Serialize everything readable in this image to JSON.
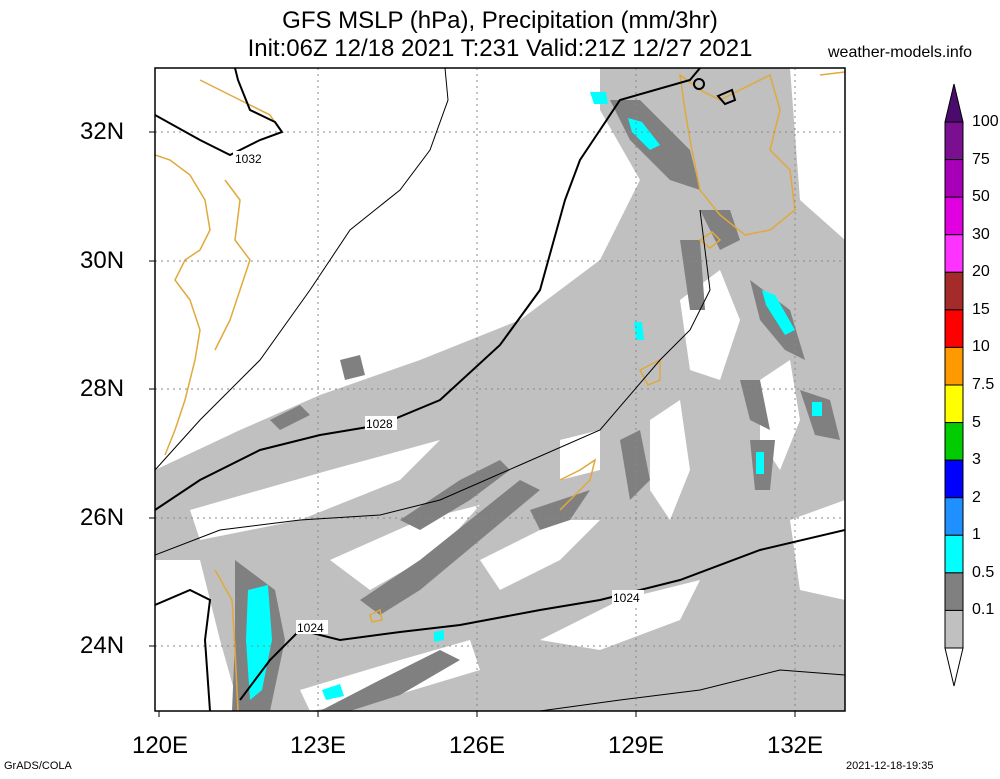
{
  "header": {
    "title_line1": "GFS MSLP (hPa), Precipitation (mm/3hr)",
    "title_line2": "Init:06Z 12/18 2021 T:231 Valid:21Z 12/27 2021",
    "site": "weather-models.info"
  },
  "map": {
    "lon_range": [
      120,
      133
    ],
    "lat_range": [
      23,
      33
    ],
    "lon_labels": [
      "120E",
      "123E",
      "126E",
      "129E",
      "132E"
    ],
    "lat_labels": [
      "32N",
      "30N",
      "28N",
      "26N",
      "24N"
    ],
    "isobar_labels": [
      "1032",
      "1028",
      "1024",
      "1024"
    ]
  },
  "colorbar": {
    "labels": [
      "100",
      "75",
      "50",
      "30",
      "20",
      "15",
      "10",
      "7.5",
      "5",
      "3",
      "2",
      "1",
      "0.5",
      "0.1"
    ],
    "colors": [
      "#7a0f8f",
      "#a800b8",
      "#e000e0",
      "#ff33ff",
      "#a52a2a",
      "#ff0000",
      "#ff9900",
      "#ffff00",
      "#00cc00",
      "#0000ff",
      "#1e90ff",
      "#00ffff",
      "#808080",
      "#c0c0c0"
    ]
  },
  "footer": {
    "left": "GrADS/COLA",
    "right": "2021-12-18-19:35"
  }
}
